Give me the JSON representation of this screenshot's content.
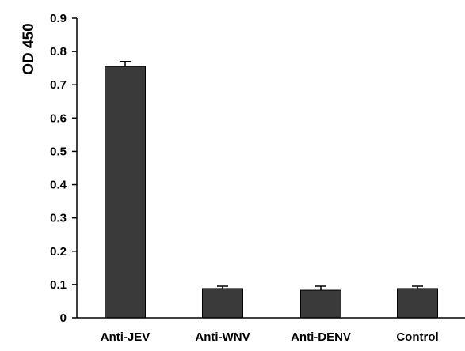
{
  "chart_data": {
    "type": "bar",
    "title": "",
    "xlabel": "",
    "ylabel": "OD 450",
    "categories": [
      "Anti-JEV",
      "Anti-WNV",
      "Anti-DENV",
      "Control"
    ],
    "values": [
      0.755,
      0.088,
      0.083,
      0.088
    ],
    "errors": [
      0.015,
      0.007,
      0.012,
      0.007
    ],
    "ylim": [
      0,
      0.9
    ],
    "yticks": [
      0,
      0.1,
      0.2,
      0.3,
      0.4,
      0.5,
      0.6,
      0.7,
      0.8,
      0.9
    ],
    "ytick_labels": [
      "0",
      "0.1",
      "0.2",
      "0.3",
      "0.4",
      "0.5",
      "0.6",
      "0.7",
      "0.8",
      "0.9"
    ],
    "grid": false,
    "legend": "none",
    "bar_color": "#3a3a3a",
    "axis_color": "#000000"
  }
}
